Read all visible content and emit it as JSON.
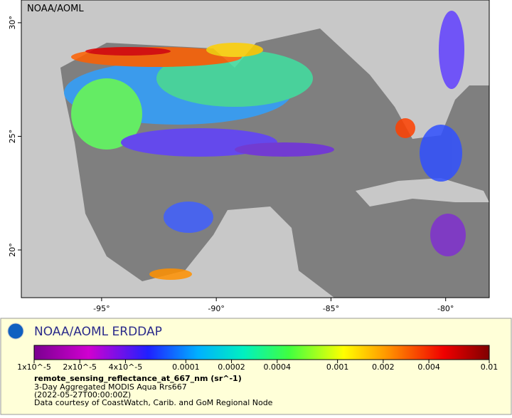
{
  "map": {
    "label": "NOAA/AOML",
    "xlim": [
      -98.5,
      -78.1
    ],
    "ylim": [
      17.9,
      31
    ],
    "xticks": [
      {
        "value": -95,
        "label": "-95°"
      },
      {
        "value": -90,
        "label": "-90°"
      },
      {
        "value": -85,
        "label": "-85°"
      },
      {
        "value": -80,
        "label": "-80°"
      }
    ],
    "yticks": [
      {
        "value": 30,
        "label": "30°"
      },
      {
        "value": 25,
        "label": "25°"
      },
      {
        "value": 20,
        "label": "20°"
      }
    ]
  },
  "legend": {
    "title": "NOAA/AOML ERDDAP",
    "colorbar": {
      "log": true,
      "lim": [
        1e-05,
        0.01
      ],
      "ticks": [
        {
          "value": 1e-05,
          "label": "1x10^-5"
        },
        {
          "value": 2e-05,
          "label": "2x10^-5"
        },
        {
          "value": 4e-05,
          "label": "4x10^-5"
        },
        {
          "value": 0.0001,
          "label": "0.0001"
        },
        {
          "value": 0.0002,
          "label": "0.0002"
        },
        {
          "value": 0.0004,
          "label": "0.0004"
        },
        {
          "value": 0.001,
          "label": "0.001"
        },
        {
          "value": 0.002,
          "label": "0.002"
        },
        {
          "value": 0.004,
          "label": "0.004"
        },
        {
          "value": 0.01,
          "label": "0.01"
        }
      ]
    },
    "variable": "remote_sensing_reflectance_at_667_nm (sr^-1)",
    "lines": [
      "3-Day Aggregated MODIS Aqua Rrs667",
      "(2022-05-27T00:00:00Z)",
      "Data courtesy of CoastWatch, Carib. and GoM Regional Node"
    ]
  }
}
